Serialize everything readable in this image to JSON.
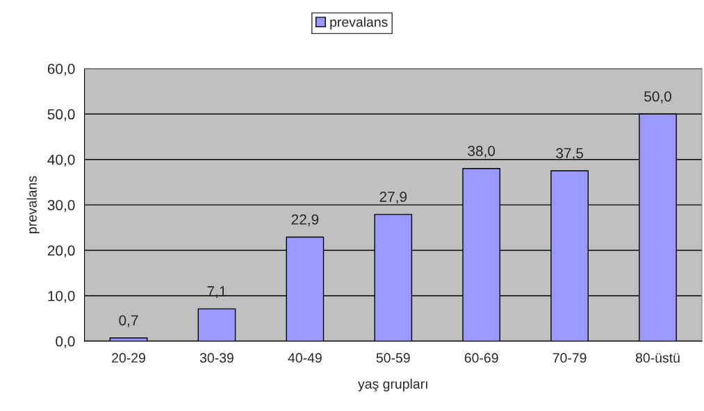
{
  "chart_data": {
    "type": "bar",
    "xlabel": "yaş grupları",
    "ylabel": "prevalans",
    "categories": [
      "20-29",
      "30-39",
      "40-49",
      "50-59",
      "60-69",
      "70-79",
      "80-üstü"
    ],
    "series": [
      {
        "name": "prevalans",
        "color": "#9999ff",
        "values": [
          0.7,
          7.1,
          22.9,
          27.9,
          38.0,
          37.5,
          50.0
        ],
        "value_labels": [
          "0,7",
          "7,1",
          "22,9",
          "27,9",
          "38,0",
          "37,5",
          "50,0"
        ]
      }
    ],
    "ylim": [
      0,
      60
    ],
    "yticks": [
      {
        "value": 0,
        "label": "0,0"
      },
      {
        "value": 10,
        "label": "10,0"
      },
      {
        "value": 20,
        "label": "20,0"
      },
      {
        "value": 30,
        "label": "30,0"
      },
      {
        "value": 40,
        "label": "40,0"
      },
      {
        "value": 50,
        "label": "50,0"
      },
      {
        "value": 60,
        "label": "60,0"
      }
    ],
    "grid": "y",
    "legend": "top"
  }
}
